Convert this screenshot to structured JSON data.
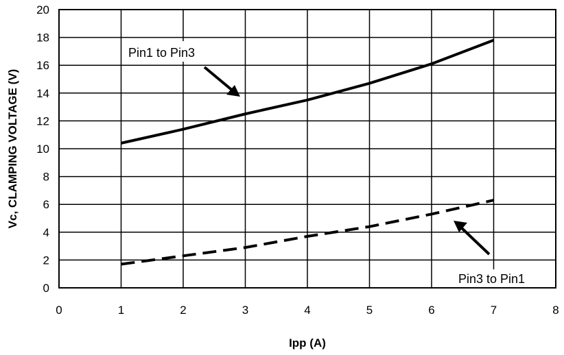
{
  "chart_data": {
    "type": "line",
    "title": "",
    "xlabel": "Ipp (A)",
    "ylabel": "Vc, CLAMPING VOLTAGE (V)",
    "xlim": [
      0,
      8
    ],
    "ylim": [
      0,
      20
    ],
    "x_ticks": [
      "0",
      "1",
      "2",
      "3",
      "4",
      "5",
      "6",
      "7",
      "8"
    ],
    "y_ticks": [
      "0",
      "2",
      "4",
      "6",
      "8",
      "10",
      "12",
      "14",
      "16",
      "18",
      "20"
    ],
    "grid": true,
    "series": [
      {
        "name": "Pin1 to Pin3",
        "style": "solid",
        "color": "#000000",
        "x": [
          1,
          2,
          3,
          4,
          5,
          6,
          7
        ],
        "y": [
          10.4,
          11.4,
          12.5,
          13.5,
          14.7,
          16.1,
          17.8
        ]
      },
      {
        "name": "Pin3 to Pin1",
        "style": "dashed",
        "color": "#000000",
        "x": [
          1,
          2,
          3,
          4,
          5,
          6,
          7
        ],
        "y": [
          1.7,
          2.3,
          2.9,
          3.7,
          4.4,
          5.3,
          6.3
        ]
      }
    ],
    "annotations": [
      {
        "text": "Pin1 to Pin3",
        "series": 0
      },
      {
        "text": "Pin3 to Pin1",
        "series": 1
      }
    ]
  }
}
